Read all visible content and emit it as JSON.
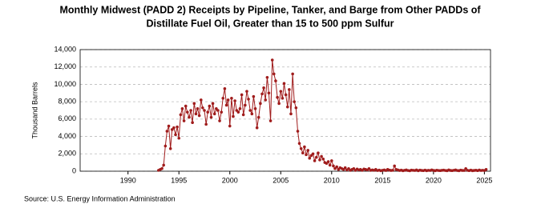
{
  "chart_data": {
    "type": "line",
    "title": [
      "Monthly Midwest (PADD 2) Receipts by Pipeline, Tanker, and Barge from Other PADDs of",
      "Distillate Fuel Oil, Greater than 15 to 500 ppm Sulfur"
    ],
    "y_label": "Thousand Barrels",
    "source": "Source: U.S. Energy Information Administration",
    "color": "#a01c1c",
    "grid": true,
    "xlim": [
      1985.3,
      2025.6
    ],
    "xticks": [
      1990,
      1995,
      2000,
      2005,
      2010,
      2015,
      2020,
      2025
    ],
    "ylim": [
      0,
      14000
    ],
    "yticks": [
      0,
      {
        "value": 2000,
        "label": "2,000"
      },
      {
        "value": 4000,
        "label": "4,000"
      },
      {
        "value": 6000,
        "label": "6,000"
      },
      {
        "value": 8000,
        "label": "8,000"
      },
      {
        "value": 10000,
        "label": "10,000"
      },
      {
        "value": 12000,
        "label": "12,000"
      },
      {
        "value": 14000,
        "label": "14,000"
      }
    ],
    "x": [
      1993.0,
      1993.17,
      1993.33,
      1993.5,
      1993.67,
      1993.83,
      1994.0,
      1994.17,
      1994.33,
      1994.5,
      1994.67,
      1994.83,
      1995.0,
      1995.17,
      1995.33,
      1995.5,
      1995.67,
      1995.83,
      1996.0,
      1996.17,
      1996.33,
      1996.5,
      1996.67,
      1996.83,
      1997.0,
      1997.17,
      1997.33,
      1997.5,
      1997.67,
      1997.83,
      1998.0,
      1998.17,
      1998.33,
      1998.5,
      1998.67,
      1998.83,
      1999.0,
      1999.17,
      1999.33,
      1999.5,
      1999.67,
      1999.83,
      2000.0,
      2000.17,
      2000.33,
      2000.5,
      2000.67,
      2000.83,
      2001.0,
      2001.17,
      2001.33,
      2001.5,
      2001.67,
      2001.83,
      2002.0,
      2002.17,
      2002.33,
      2002.5,
      2002.67,
      2002.83,
      2003.0,
      2003.17,
      2003.33,
      2003.5,
      2003.67,
      2003.83,
      2004.0,
      2004.17,
      2004.33,
      2004.5,
      2004.67,
      2004.83,
      2005.0,
      2005.17,
      2005.33,
      2005.5,
      2005.67,
      2005.83,
      2006.0,
      2006.17,
      2006.33,
      2006.5,
      2006.67,
      2006.83,
      2007.0,
      2007.17,
      2007.33,
      2007.5,
      2007.67,
      2007.83,
      2008.0,
      2008.17,
      2008.33,
      2008.5,
      2008.67,
      2008.83,
      2009.0,
      2009.17,
      2009.33,
      2009.5,
      2009.67,
      2009.83,
      2010.0,
      2010.17,
      2010.33,
      2010.5,
      2010.67,
      2010.83,
      2011.0,
      2011.17,
      2011.33,
      2011.5,
      2011.67,
      2011.83,
      2012.0,
      2012.17,
      2012.33,
      2012.5,
      2012.67,
      2012.83,
      2013.0,
      2013.17,
      2013.33,
      2013.5,
      2013.67,
      2013.83,
      2014.0,
      2014.17,
      2014.33,
      2014.5,
      2014.67,
      2014.83,
      2015.0,
      2015.17,
      2015.33,
      2015.5,
      2015.67,
      2015.83,
      2016.0,
      2016.17,
      2016.33,
      2016.5,
      2016.67,
      2016.83,
      2017.0,
      2017.17,
      2017.33,
      2017.5,
      2017.67,
      2017.83,
      2018.0,
      2018.17,
      2018.33,
      2018.5,
      2018.67,
      2018.83,
      2019.0,
      2019.17,
      2019.33,
      2019.5,
      2019.67,
      2019.83,
      2020.0,
      2020.17,
      2020.33,
      2020.5,
      2020.67,
      2020.83,
      2021.0,
      2021.17,
      2021.33,
      2021.5,
      2021.67,
      2021.83,
      2022.0,
      2022.17,
      2022.33,
      2022.5,
      2022.67,
      2022.83,
      2023.0,
      2023.17,
      2023.33,
      2023.5,
      2023.67,
      2023.83,
      2024.0,
      2024.17,
      2024.33,
      2024.5,
      2024.67,
      2024.83,
      2025.0,
      2025.17
    ],
    "values": [
      100,
      200,
      300,
      700,
      2900,
      4600,
      5200,
      2600,
      4800,
      5000,
      4200,
      5100,
      3800,
      6500,
      7200,
      5800,
      7500,
      6800,
      6200,
      7000,
      5600,
      7800,
      6600,
      7200,
      6400,
      8200,
      7300,
      7000,
      5400,
      6800,
      7500,
      6200,
      7800,
      6600,
      7200,
      7000,
      5800,
      6800,
      8400,
      9500,
      7600,
      8200,
      5200,
      8400,
      6300,
      8100,
      7000,
      6800,
      7200,
      8800,
      6500,
      7600,
      9200,
      8300,
      7000,
      6600,
      8600,
      7200,
      5000,
      6200,
      7800,
      8900,
      9600,
      8200,
      10800,
      9000,
      5800,
      12800,
      11200,
      10400,
      8500,
      7800,
      9200,
      8400,
      10100,
      8800,
      7400,
      9400,
      6600,
      11200,
      8000,
      7300,
      4600,
      3200,
      2600,
      2100,
      2800,
      1900,
      2400,
      1500,
      1800,
      2000,
      1200,
      1600,
      2100,
      1300,
      1700,
      1400,
      1000,
      900,
      1100,
      700,
      1200,
      600,
      300,
      500,
      200,
      400,
      300,
      200,
      400,
      150,
      300,
      100,
      200,
      300,
      100,
      250,
      150,
      200,
      100,
      250,
      200,
      150,
      300,
      100,
      150,
      100,
      200,
      80,
      120,
      60,
      100,
      150,
      80,
      200,
      120,
      90,
      100,
      600,
      200,
      150,
      80,
      120,
      60,
      100,
      150,
      80,
      50,
      120,
      100,
      80,
      150,
      60,
      120,
      90,
      70,
      120,
      60,
      100,
      80,
      150,
      90,
      60,
      110,
      80,
      70,
      100,
      120,
      80,
      60,
      140,
      90,
      70,
      100,
      150,
      80,
      60,
      120,
      90,
      80,
      300,
      100,
      70,
      120,
      60,
      90,
      110,
      70,
      130,
      80,
      100,
      80,
      200
    ]
  }
}
